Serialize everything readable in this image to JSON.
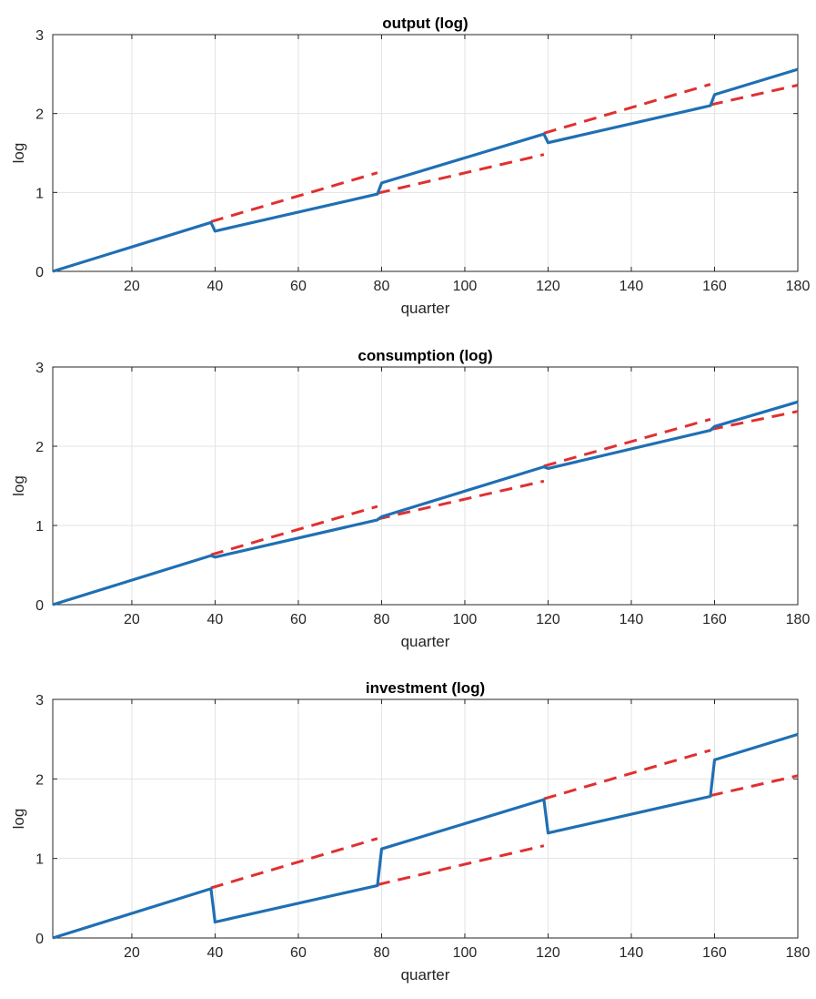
{
  "chart_data": [
    {
      "type": "line",
      "title": "output (log)",
      "xlabel": "quarter",
      "ylabel": "log",
      "xlim": [
        1,
        180
      ],
      "ylim": [
        0,
        3
      ],
      "xticks": [
        20,
        40,
        60,
        80,
        100,
        120,
        140,
        160,
        180
      ],
      "yticks": [
        0,
        1,
        2,
        3
      ],
      "grid": true,
      "solid_color": "#1f6fb4",
      "dashed_color": "#e03030",
      "solid_series": [
        [
          1,
          0.0
        ],
        [
          39,
          0.62
        ],
        [
          40,
          0.51
        ],
        [
          79,
          0.98
        ],
        [
          80,
          1.12
        ],
        [
          119,
          1.74
        ],
        [
          120,
          1.63
        ],
        [
          159,
          2.1
        ],
        [
          160,
          2.24
        ],
        [
          180,
          2.56
        ]
      ],
      "dashed_series": [
        [
          [
            39,
            0.63
          ],
          [
            79,
            1.25
          ]
        ],
        [
          [
            79,
            0.99
          ],
          [
            119,
            1.48
          ]
        ],
        [
          [
            119,
            1.75
          ],
          [
            159,
            2.37
          ]
        ],
        [
          [
            159,
            2.11
          ],
          [
            180,
            2.36
          ]
        ]
      ]
    },
    {
      "type": "line",
      "title": "consumption (log)",
      "xlabel": "quarter",
      "ylabel": "log",
      "xlim": [
        1,
        180
      ],
      "ylim": [
        0,
        3
      ],
      "xticks": [
        20,
        40,
        60,
        80,
        100,
        120,
        140,
        160,
        180
      ],
      "yticks": [
        0,
        1,
        2,
        3
      ],
      "grid": true,
      "solid_color": "#1f6fb4",
      "dashed_color": "#e03030",
      "solid_series": [
        [
          1,
          0.0
        ],
        [
          39,
          0.62
        ],
        [
          40,
          0.6
        ],
        [
          79,
          1.07
        ],
        [
          80,
          1.11
        ],
        [
          119,
          1.74
        ],
        [
          120,
          1.72
        ],
        [
          159,
          2.2
        ],
        [
          160,
          2.25
        ],
        [
          180,
          2.56
        ]
      ],
      "dashed_series": [
        [
          [
            39,
            0.63
          ],
          [
            79,
            1.24
          ]
        ],
        [
          [
            79,
            1.08
          ],
          [
            119,
            1.56
          ]
        ],
        [
          [
            119,
            1.75
          ],
          [
            159,
            2.34
          ]
        ],
        [
          [
            159,
            2.21
          ],
          [
            180,
            2.44
          ]
        ]
      ]
    },
    {
      "type": "line",
      "title": "investment (log)",
      "xlabel": "quarter",
      "ylabel": "log",
      "xlim": [
        1,
        180
      ],
      "ylim": [
        0,
        3
      ],
      "xticks": [
        20,
        40,
        60,
        80,
        100,
        120,
        140,
        160,
        180
      ],
      "yticks": [
        0,
        1,
        2,
        3
      ],
      "grid": true,
      "solid_color": "#1f6fb4",
      "dashed_color": "#e03030",
      "solid_series": [
        [
          1,
          0.0
        ],
        [
          39,
          0.62
        ],
        [
          40,
          0.2
        ],
        [
          79,
          0.66
        ],
        [
          80,
          1.12
        ],
        [
          119,
          1.74
        ],
        [
          120,
          1.32
        ],
        [
          159,
          1.78
        ],
        [
          160,
          2.24
        ],
        [
          180,
          2.56
        ]
      ],
      "dashed_series": [
        [
          [
            39,
            0.63
          ],
          [
            79,
            1.25
          ]
        ],
        [
          [
            79,
            0.67
          ],
          [
            119,
            1.16
          ]
        ],
        [
          [
            119,
            1.75
          ],
          [
            159,
            2.36
          ]
        ],
        [
          [
            159,
            1.79
          ],
          [
            180,
            2.04
          ]
        ]
      ]
    }
  ]
}
